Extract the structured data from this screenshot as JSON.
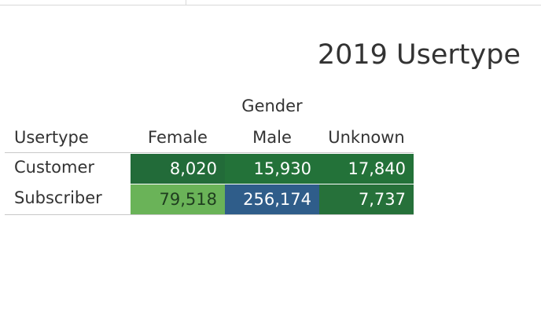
{
  "chart_data": {
    "type": "heatmap",
    "title": "2019 Usertype",
    "column_group_label": "Gender",
    "row_header_label": "Usertype",
    "columns": [
      "Female",
      "Male",
      "Unknown"
    ],
    "rows": [
      "Customer",
      "Subscriber"
    ],
    "values": [
      [
        8020,
        15930,
        17840
      ],
      [
        79518,
        256174,
        7737
      ]
    ],
    "value_labels": [
      [
        "8,020",
        "15,930",
        "17,840"
      ],
      [
        "79,518",
        "256,174",
        "7,737"
      ]
    ],
    "cell_colors": [
      [
        "#226b39",
        "#237239",
        "#237239"
      ],
      [
        "#6ab358",
        "#2f5d8a",
        "#26713a"
      ]
    ],
    "cell_text_colors": [
      [
        "#ffffff",
        "#ffffff",
        "#ffffff"
      ],
      [
        "#1f3d1f",
        "#ffffff",
        "#ffffff"
      ]
    ]
  }
}
